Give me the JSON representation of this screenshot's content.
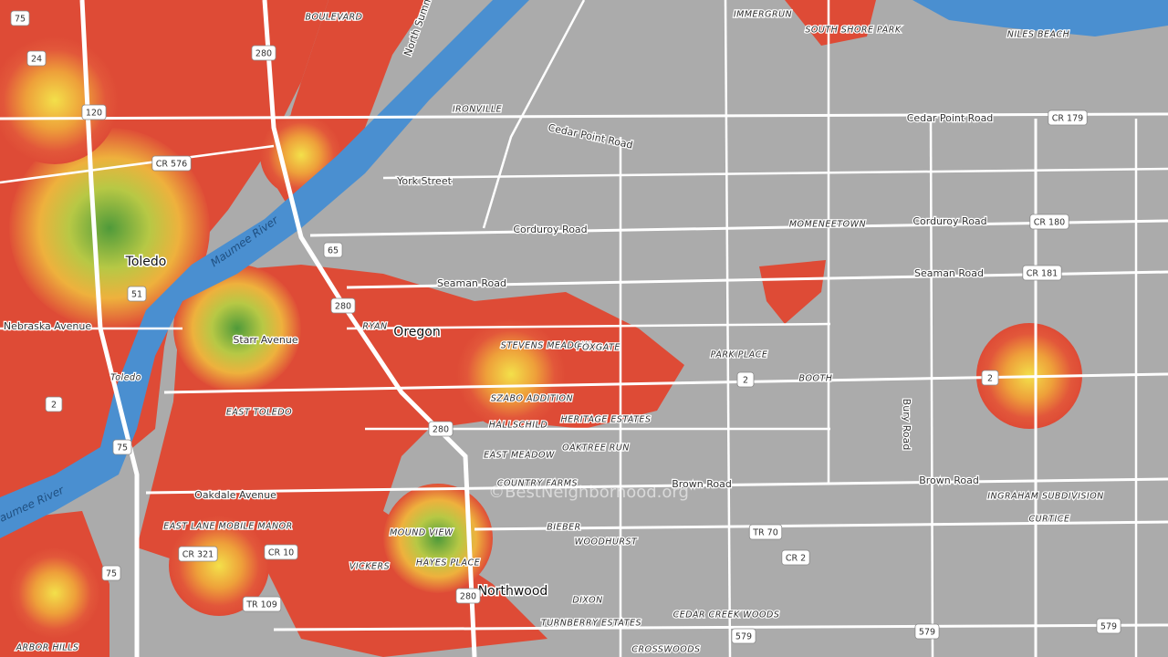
{
  "places": [
    "BOULEVARD",
    "IMMERGRUN",
    "SOUTH SHORE PARK",
    "NILES BEACH",
    "IRONVILLE",
    "MOMENEETOWN",
    "RYAN",
    "STEVENS MEADOW",
    "FOXGATE",
    "PARK PLACE",
    "BOOTH",
    "SZABO ADDITION",
    "HERITAGE ESTATES",
    "HALLSCHILD",
    "EAST TOLEDO",
    "EAST MEADOW",
    "OAKTREE RUN",
    "COUNTRY FARMS",
    "INGRAHAM SUBDIVISION",
    "CURTICE",
    "BIEBER",
    "WOODHURST",
    "MOUND VIEW",
    "EAST LANE MOBILE MANOR",
    "VICKERS",
    "HAYES PLACE",
    "DIXON",
    "TURNBERRY ESTATES",
    "CEDAR CREEK WOODS",
    "CROSSWOODS",
    "ARBOR HILLS",
    "Toledo"
  ],
  "cities": [
    "Toledo",
    "Oregon",
    "Northwood"
  ],
  "roads": [
    "Cedar Point Road",
    "York Street",
    "Corduroy Road",
    "Seaman Road",
    "Starr Avenue",
    "Nebraska Avenue",
    "Brown Road",
    "Oakdale Avenue",
    "Bury Road",
    "Cedar Point Road",
    "Corduroy Road",
    "Seaman Road",
    "Brown Road",
    "North Summit"
  ],
  "rivers": [
    "Maumee River",
    "Maumee River"
  ],
  "shields": [
    "75",
    "24",
    "280",
    "120",
    "CR 576",
    "65",
    "51",
    "280",
    "2",
    "75",
    "CR 321",
    "CR 10",
    "TR 109",
    "280",
    "TR 70",
    "CR 2",
    "579",
    "579",
    "579",
    "2",
    "CR 179",
    "CR 180",
    "CR 181",
    "2",
    "280",
    "75"
  ],
  "watermark": "©BestNeighborhood.org"
}
